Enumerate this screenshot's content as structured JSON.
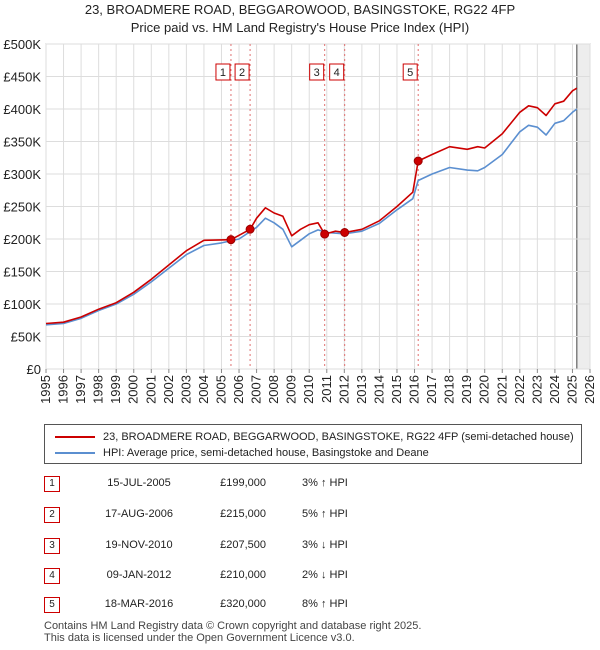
{
  "title": {
    "line1": "23, BROADMERE ROAD, BEGGAROWOOD, BASINGSTOKE, RG22 4FP",
    "line2": "Price paid vs. HM Land Registry's House Price Index (HPI)"
  },
  "colors": {
    "property": "#cc0000",
    "hpi": "#5b8fd0",
    "marker": "#cc0000",
    "grid": "#dddddd"
  },
  "chart_data": {
    "type": "line",
    "title": "Price paid vs. HM Land Registry's House Price Index (HPI)",
    "xlabel": "",
    "ylabel": "",
    "xlim": [
      1995,
      2026
    ],
    "ylim": [
      0,
      500000
    ],
    "x_ticks": [
      "1995",
      "1996",
      "1997",
      "1998",
      "1999",
      "2000",
      "2001",
      "2002",
      "2003",
      "2004",
      "2005",
      "2006",
      "2007",
      "2008",
      "2009",
      "2010",
      "2011",
      "2012",
      "2013",
      "2014",
      "2015",
      "2016",
      "2017",
      "2018",
      "2019",
      "2020",
      "2021",
      "2022",
      "2023",
      "2024",
      "2025",
      "2026"
    ],
    "y_ticks": [
      {
        "value": 0,
        "label": "£0"
      },
      {
        "value": 50000,
        "label": "£50K"
      },
      {
        "value": 100000,
        "label": "£100K"
      },
      {
        "value": 150000,
        "label": "£150K"
      },
      {
        "value": 200000,
        "label": "£200K"
      },
      {
        "value": 250000,
        "label": "£250K"
      },
      {
        "value": 300000,
        "label": "£300K"
      },
      {
        "value": 350000,
        "label": "£350K"
      },
      {
        "value": 400000,
        "label": "£400K"
      },
      {
        "value": 450000,
        "label": "£450K"
      },
      {
        "value": 500000,
        "label": "£500K"
      }
    ],
    "series": [
      {
        "name": "23, BROADMERE ROAD, BEGGARWOOD, BASINGSTOKE, RG22 4FP (semi-detached house)",
        "color": "#cc0000",
        "points": [
          [
            1995,
            70000
          ],
          [
            1996,
            72000
          ],
          [
            1997,
            80000
          ],
          [
            1998,
            92000
          ],
          [
            1999,
            102000
          ],
          [
            2000,
            118000
          ],
          [
            2001,
            138000
          ],
          [
            2002,
            160000
          ],
          [
            2003,
            182000
          ],
          [
            2004,
            198000
          ],
          [
            2005.54,
            199000
          ],
          [
            2006.63,
            215000
          ],
          [
            2007,
            232000
          ],
          [
            2007.5,
            248000
          ],
          [
            2008,
            240000
          ],
          [
            2008.5,
            235000
          ],
          [
            2009,
            205000
          ],
          [
            2009.5,
            215000
          ],
          [
            2010,
            222000
          ],
          [
            2010.5,
            225000
          ],
          [
            2010.88,
            207500
          ],
          [
            2011.5,
            212000
          ],
          [
            2012.02,
            210000
          ],
          [
            2013,
            215000
          ],
          [
            2014,
            228000
          ],
          [
            2015,
            250000
          ],
          [
            2015.9,
            272000
          ],
          [
            2016.21,
            320000
          ],
          [
            2017,
            330000
          ],
          [
            2018,
            342000
          ],
          [
            2019,
            338000
          ],
          [
            2019.6,
            342000
          ],
          [
            2020,
            340000
          ],
          [
            2021,
            362000
          ],
          [
            2022,
            395000
          ],
          [
            2022.5,
            405000
          ],
          [
            2023,
            402000
          ],
          [
            2023.5,
            390000
          ],
          [
            2024,
            408000
          ],
          [
            2024.5,
            412000
          ],
          [
            2025,
            428000
          ],
          [
            2025.25,
            432000
          ]
        ]
      },
      {
        "name": "HPI: Average price, semi-detached house, Basingstoke and Deane",
        "color": "#5b8fd0",
        "points": [
          [
            1995,
            68000
          ],
          [
            1996,
            70000
          ],
          [
            1997,
            78000
          ],
          [
            1998,
            90000
          ],
          [
            1999,
            100000
          ],
          [
            2000,
            115000
          ],
          [
            2001,
            134000
          ],
          [
            2002,
            155000
          ],
          [
            2003,
            176000
          ],
          [
            2004,
            190000
          ],
          [
            2005,
            194000
          ],
          [
            2006,
            200000
          ],
          [
            2007,
            218000
          ],
          [
            2007.5,
            232000
          ],
          [
            2008,
            225000
          ],
          [
            2008.5,
            215000
          ],
          [
            2009,
            188000
          ],
          [
            2009.5,
            198000
          ],
          [
            2010,
            208000
          ],
          [
            2010.5,
            214000
          ],
          [
            2011,
            210000
          ],
          [
            2012,
            208000
          ],
          [
            2013,
            212000
          ],
          [
            2014,
            224000
          ],
          [
            2015,
            245000
          ],
          [
            2015.9,
            262000
          ],
          [
            2016.21,
            290000
          ],
          [
            2017,
            300000
          ],
          [
            2018,
            310000
          ],
          [
            2019,
            306000
          ],
          [
            2019.6,
            305000
          ],
          [
            2020,
            310000
          ],
          [
            2021,
            330000
          ],
          [
            2022,
            365000
          ],
          [
            2022.5,
            375000
          ],
          [
            2023,
            372000
          ],
          [
            2023.5,
            360000
          ],
          [
            2024,
            378000
          ],
          [
            2024.5,
            382000
          ],
          [
            2025,
            395000
          ],
          [
            2025.25,
            400000
          ]
        ]
      }
    ],
    "transactions_markers": [
      {
        "id": "1",
        "x": 2005.54,
        "y": 199000
      },
      {
        "id": "2",
        "x": 2006.63,
        "y": 215000
      },
      {
        "id": "3",
        "x": 2010.88,
        "y": 207500
      },
      {
        "id": "4",
        "x": 2012.02,
        "y": 210000
      },
      {
        "id": "5",
        "x": 2016.21,
        "y": 320000
      }
    ],
    "forecast_start": 2025.25
  },
  "legend": {
    "property_label": "23, BROADMERE ROAD, BEGGARWOOD, BASINGSTOKE, RG22 4FP (semi-detached house)",
    "hpi_label": "HPI: Average price, semi-detached house, Basingstoke and Deane"
  },
  "transactions": [
    {
      "num": "1",
      "date": "15-JUL-2005",
      "price": "£199,000",
      "hpi": "3% ↑ HPI"
    },
    {
      "num": "2",
      "date": "17-AUG-2006",
      "price": "£215,000",
      "hpi": "5% ↑ HPI"
    },
    {
      "num": "3",
      "date": "19-NOV-2010",
      "price": "£207,500",
      "hpi": "3% ↓ HPI"
    },
    {
      "num": "4",
      "date": "09-JAN-2012",
      "price": "£210,000",
      "hpi": "2% ↓ HPI"
    },
    {
      "num": "5",
      "date": "18-MAR-2016",
      "price": "£320,000",
      "hpi": "8% ↑ HPI"
    }
  ],
  "footer": {
    "line1": "Contains HM Land Registry data © Crown copyright and database right 2025.",
    "line2": "This data is licensed under the Open Government Licence v3.0."
  }
}
